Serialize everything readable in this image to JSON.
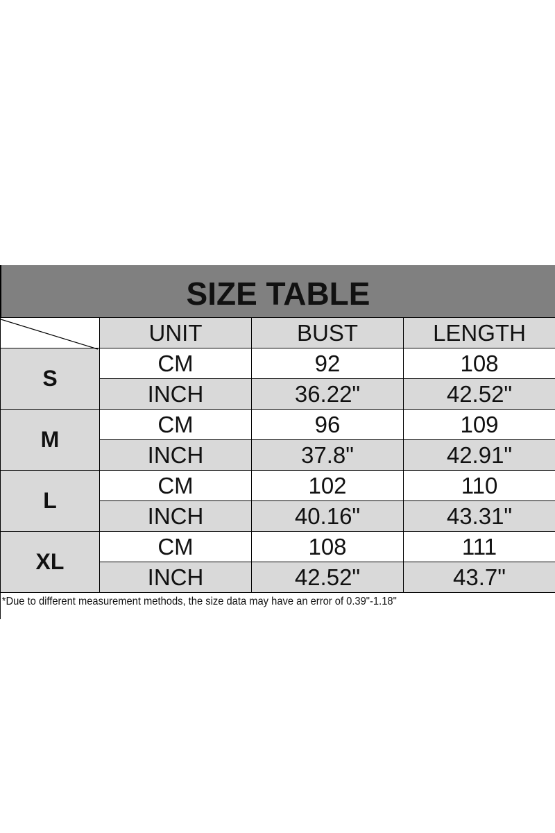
{
  "title": "SIZE TABLE",
  "headers": {
    "unit": "UNIT",
    "bust": "BUST",
    "length": "LENGTH"
  },
  "rows": [
    {
      "size": "S",
      "cm": {
        "unit": "CM",
        "bust": "92",
        "length": "108"
      },
      "inch": {
        "unit": "INCH",
        "bust": "36.22\"",
        "length": "42.52\""
      }
    },
    {
      "size": "M",
      "cm": {
        "unit": "CM",
        "bust": "96",
        "length": "109"
      },
      "inch": {
        "unit": "INCH",
        "bust": "37.8\"",
        "length": "42.91\""
      }
    },
    {
      "size": "L",
      "cm": {
        "unit": "CM",
        "bust": "102",
        "length": "110"
      },
      "inch": {
        "unit": "INCH",
        "bust": "40.16\"",
        "length": "43.31\""
      }
    },
    {
      "size": "XL",
      "cm": {
        "unit": "CM",
        "bust": "108",
        "length": "111"
      },
      "inch": {
        "unit": "INCH",
        "bust": "42.52\"",
        "length": "43.7\""
      }
    }
  ],
  "note": "*Due to different measurement methods, the size data may have an error of 0.39\"-1.18\"",
  "colors": {
    "title_bg": "#808080",
    "cell_gray": "#d9d9d9",
    "cell_white": "#ffffff"
  }
}
